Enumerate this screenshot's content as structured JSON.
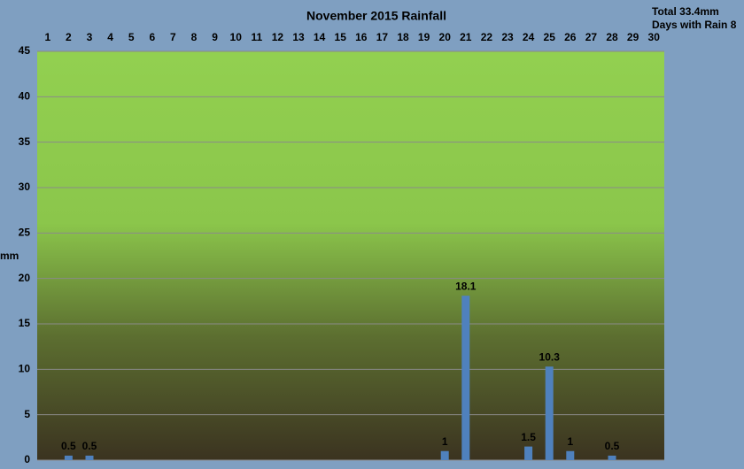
{
  "chart_data": {
    "type": "bar",
    "title": "November 2015 Rainfall",
    "annotations": [
      "Total 33.4mm",
      "Days with Rain 8"
    ],
    "y_label": "mm",
    "categories": [
      "1",
      "2",
      "3",
      "4",
      "5",
      "6",
      "7",
      "8",
      "9",
      "10",
      "11",
      "12",
      "13",
      "14",
      "15",
      "16",
      "17",
      "18",
      "19",
      "20",
      "21",
      "22",
      "23",
      "24",
      "25",
      "26",
      "27",
      "28",
      "29",
      "30"
    ],
    "values": [
      0,
      0.5,
      0.5,
      0,
      0,
      0,
      0,
      0,
      0,
      0,
      0,
      0,
      0,
      0,
      0,
      0,
      0,
      0,
      0,
      1,
      18.1,
      0,
      0,
      1.5,
      10.3,
      1,
      0,
      0.5,
      0,
      0
    ],
    "color": "#4f81bd",
    "ylim": [
      0,
      45
    ],
    "yticks": [
      0,
      5,
      10,
      15,
      20,
      25,
      30,
      35,
      40,
      45
    ],
    "grid": true
  }
}
